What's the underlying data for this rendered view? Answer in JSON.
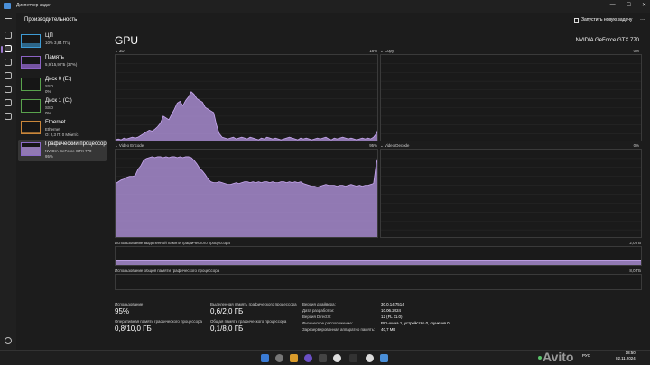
{
  "window": {
    "title": "Диспетчер задач"
  },
  "header": {
    "page_title": "Производительность",
    "new_task_label": "Запустить новую задачу",
    "more": "..."
  },
  "sidebar": {
    "items": [
      {
        "name": "ЦП",
        "sub1": "10%  3,84 ГГц",
        "sub2": "",
        "sub3": ""
      },
      {
        "name": "Память",
        "sub1": "5,9/15,9 ГБ (37%)",
        "sub2": "",
        "sub3": ""
      },
      {
        "name": "Диск 0 (E:)",
        "sub1": "SSD",
        "sub2": "0%",
        "sub3": ""
      },
      {
        "name": "Диск 1 (C:)",
        "sub1": "SSD",
        "sub2": "0%",
        "sub3": ""
      },
      {
        "name": "Ethernet",
        "sub1": "Ethernet",
        "sub2": "О: 2,3  П: 0 Мбит/с",
        "sub3": ""
      },
      {
        "name": "Графический процессор",
        "sub1": "NVIDIA GeForce GTX 770",
        "sub2": "95%",
        "sub3": ""
      }
    ],
    "active_index": 5
  },
  "gpu": {
    "title": "GPU",
    "model": "NVIDIA GeForce GTX 770",
    "graphs": {
      "3d": {
        "label": "3D",
        "pct": "18%"
      },
      "copy": {
        "label": "Copy",
        "pct": "0%"
      },
      "video_encode": {
        "label": "Video Encode",
        "pct": "95%"
      },
      "video_decode": {
        "label": "Video Decode",
        "pct": "0%"
      }
    },
    "dedicated_mem": {
      "label": "Использование выделенной памяти графического процессора",
      "max": "2,0 ГБ"
    },
    "shared_mem": {
      "label": "Использование общей памяти графического процессора",
      "max": "8,0 ГБ"
    }
  },
  "stats": {
    "usage": {
      "label": "Использование",
      "value": "95%"
    },
    "dedicated": {
      "label": "Выделенная память графического процессора",
      "value": "0,6/2,0 ГБ"
    },
    "gpu_memory": {
      "label": "Оперативная память графического процессора",
      "value": "0,8/10,0 ГБ"
    },
    "shared": {
      "label": "Общая память графического процессора",
      "value": "0,1/8,0 ГБ"
    }
  },
  "info": [
    {
      "k": "Версия драйвера:",
      "v": "30.0.14.7514"
    },
    {
      "k": "Дата разработки:",
      "v": "10.06.2024"
    },
    {
      "k": "Версия DirectX:",
      "v": "12 (FL 11.0)"
    },
    {
      "k": "Физическое расположение:",
      "v": "PCI-шина 1, устройство 0, функция 0"
    },
    {
      "k": "Зарезервированная аппаратно память:",
      "v": "40,7 МБ"
    }
  ],
  "taskbar": {
    "tray_lang": "РУС",
    "time": "18:50",
    "date": "02.11.2024"
  },
  "watermark": "Avito",
  "colors": {
    "accent": "#9d7ad0",
    "graph_fill": "#a78bcf",
    "graph_line": "#c8a8f0"
  },
  "chart_series": {
    "3d": [
      3,
      4,
      3,
      5,
      4,
      5,
      6,
      5,
      6,
      8,
      10,
      12,
      14,
      13,
      15,
      18,
      22,
      30,
      28,
      26,
      32,
      38,
      45,
      47,
      42,
      48,
      52,
      58,
      55,
      50,
      48,
      46,
      40,
      38,
      36,
      34,
      20,
      10,
      6,
      5,
      4,
      5,
      6,
      4,
      5,
      6,
      5,
      4,
      6,
      5,
      4,
      3,
      5,
      4,
      6,
      5,
      4,
      5,
      4,
      3,
      4,
      5,
      6,
      5,
      4,
      3,
      5,
      4,
      5,
      4,
      3,
      4,
      5,
      4,
      5,
      6,
      4,
      3,
      5,
      4,
      5,
      6,
      5,
      4,
      5,
      4,
      3,
      4,
      5,
      4,
      5,
      4,
      6,
      10,
      18
    ],
    "copy": [
      0,
      0,
      0,
      0,
      0,
      0,
      0,
      0,
      0,
      0,
      0,
      0,
      0,
      0,
      0,
      0,
      0,
      0,
      0,
      0,
      0,
      0,
      0,
      0,
      0,
      0,
      0,
      0,
      0,
      0,
      0,
      0,
      0,
      0,
      0,
      0,
      0,
      0,
      0,
      0,
      0,
      0,
      0,
      0,
      0,
      0,
      0,
      0,
      0,
      0,
      0,
      0,
      0,
      0,
      0,
      0,
      0,
      0,
      0,
      0,
      0,
      0,
      0,
      0,
      0,
      0,
      0,
      0,
      0,
      0,
      0,
      0,
      0,
      0,
      0,
      0,
      0,
      0,
      0,
      0,
      0,
      0,
      0,
      0,
      0,
      0,
      0,
      0,
      0,
      0,
      0,
      0,
      0,
      0,
      0
    ],
    "video_encode": [
      62,
      64,
      66,
      67,
      69,
      70,
      70,
      71,
      78,
      82,
      88,
      90,
      91,
      92,
      91,
      92,
      92,
      91,
      92,
      91,
      92,
      92,
      91,
      92,
      91,
      92,
      92,
      91,
      88,
      84,
      79,
      76,
      72,
      67,
      64,
      63,
      63,
      64,
      63,
      62,
      61,
      61,
      62,
      63,
      62,
      63,
      64,
      64,
      63,
      64,
      63,
      64,
      63,
      64,
      64,
      63,
      64,
      63,
      63,
      64,
      64,
      63,
      64,
      63,
      64,
      63,
      64,
      62,
      61,
      60,
      59,
      59,
      58,
      59,
      60,
      61,
      60,
      60,
      60,
      59,
      60,
      60,
      59,
      60,
      61,
      60,
      59,
      60,
      59,
      60,
      60,
      61,
      62,
      85,
      95
    ],
    "video_decode": [
      0,
      0,
      0,
      0,
      0,
      0,
      0,
      0,
      0,
      0,
      0,
      0,
      0,
      0,
      0,
      0,
      0,
      0,
      0,
      0,
      0,
      0,
      0,
      0,
      0,
      0,
      0,
      0,
      0,
      0,
      0,
      0,
      0,
      0,
      0,
      0,
      0,
      0,
      0,
      0,
      0,
      0,
      0,
      0,
      0,
      0,
      0,
      0,
      0,
      0,
      0,
      0,
      0,
      0,
      0,
      0,
      0,
      0,
      0,
      0,
      0,
      0,
      0,
      0,
      0,
      0,
      0,
      0,
      0,
      0,
      0,
      0,
      0,
      0,
      0,
      0,
      0,
      0,
      0,
      0,
      0,
      0,
      0,
      0,
      0,
      0,
      0,
      0,
      0,
      0,
      0,
      0,
      0,
      0,
      0
    ],
    "dedicated": [
      30,
      30,
      30,
      30,
      30,
      30,
      30,
      30,
      30,
      30,
      30,
      30,
      30,
      30,
      30,
      30,
      30,
      30,
      30,
      30,
      30,
      30,
      30,
      30,
      30,
      30,
      30,
      30,
      30,
      30,
      30,
      30,
      30,
      30,
      30,
      30,
      30,
      30,
      30,
      30,
      30,
      30,
      30,
      30,
      30,
      30,
      30,
      30,
      30,
      30,
      30,
      30,
      30,
      30,
      30,
      30,
      30,
      30,
      30,
      30
    ],
    "shared": [
      1,
      1,
      1,
      1,
      1,
      1,
      1,
      1,
      1,
      1,
      1,
      1,
      1,
      1,
      1,
      1,
      1,
      1,
      1,
      1,
      1,
      1,
      1,
      1,
      1,
      1,
      1,
      1,
      1,
      1,
      1,
      1,
      1,
      1,
      1,
      1,
      1,
      1,
      1,
      1,
      1,
      1,
      1,
      1,
      1,
      1,
      1,
      1,
      1,
      1,
      1,
      1,
      1,
      1,
      1,
      1,
      1,
      1,
      1,
      1
    ]
  }
}
